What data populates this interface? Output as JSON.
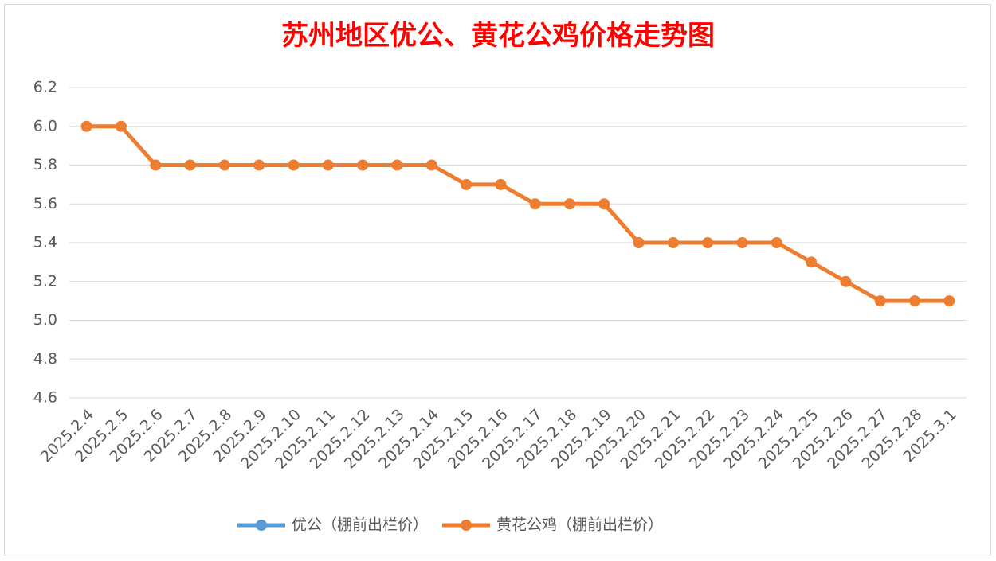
{
  "chart_data": {
    "type": "line",
    "title": "苏州地区优公、黄花公鸡价格走势图",
    "categories": [
      "2025.2.4",
      "2025.2.5",
      "2025.2.6",
      "2025.2.7",
      "2025.2.8",
      "2025.2.9",
      "2025.2.10",
      "2025.2.11",
      "2025.2.12",
      "2025.2.13",
      "2025.2.14",
      "2025.2.15",
      "2025.2.16",
      "2025.2.17",
      "2025.2.18",
      "2025.2.19",
      "2025.2.20",
      "2025.2.21",
      "2025.2.22",
      "2025.2.23",
      "2025.2.24",
      "2025.2.25",
      "2025.2.26",
      "2025.2.27",
      "2025.2.28",
      "2025.3.1"
    ],
    "series": [
      {
        "name": "优公（棚前出栏价）",
        "color": "#5b9bd5",
        "values": [
          null,
          null,
          null,
          null,
          null,
          null,
          null,
          null,
          null,
          null,
          null,
          null,
          null,
          null,
          null,
          null,
          null,
          null,
          null,
          null,
          null,
          null,
          null,
          null,
          null,
          null
        ]
      },
      {
        "name": "黄花公鸡（棚前出栏价）",
        "color": "#ed7d31",
        "values": [
          6.0,
          6.0,
          5.8,
          5.8,
          5.8,
          5.8,
          5.8,
          5.8,
          5.8,
          5.8,
          5.8,
          5.7,
          5.7,
          5.6,
          5.6,
          5.6,
          5.4,
          5.4,
          5.4,
          5.4,
          5.4,
          5.3,
          5.2,
          5.1,
          5.1,
          5.1
        ]
      }
    ],
    "ylim": [
      4.6,
      6.2
    ],
    "yticks": [
      4.6,
      4.8,
      {
        "value": 5.0,
        "label": "5.0"
      },
      5.2,
      5.4,
      5.6,
      5.8,
      {
        "value": 6.0,
        "label": "6.0"
      },
      6.2
    ],
    "grid": true,
    "legend": "bottom",
    "title_color": "#ff0000"
  }
}
